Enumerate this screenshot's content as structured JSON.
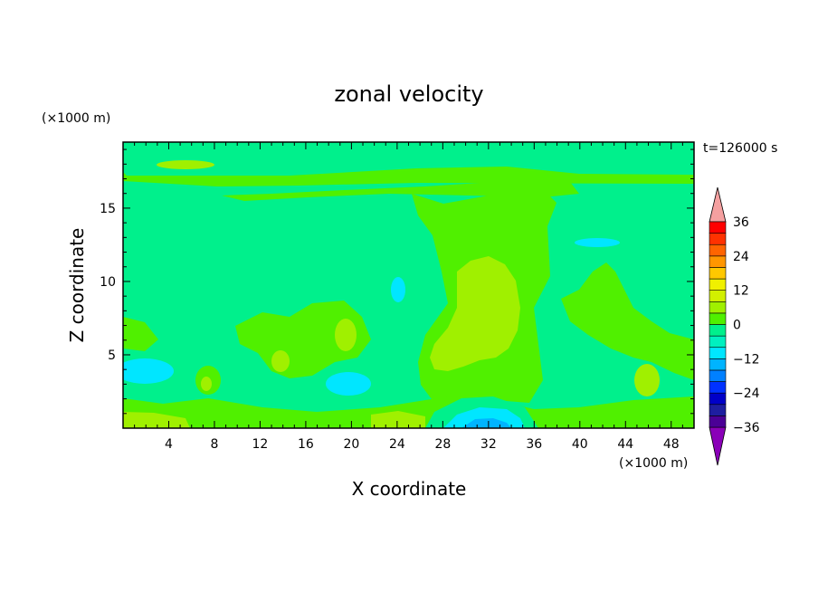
{
  "chart_data": {
    "type": "heatmap",
    "title": "zonal velocity",
    "xlabel": "X coordinate",
    "ylabel": "Z coordinate",
    "x_unit": "(×1000 m)",
    "y_unit": "(×1000 m)",
    "time_label": "t=126000 s",
    "xlim": [
      0,
      50
    ],
    "ylim": [
      0,
      19.5
    ],
    "x_ticks": [
      "4",
      "8",
      "12",
      "16",
      "20",
      "24",
      "28",
      "32",
      "36",
      "40",
      "44",
      "48"
    ],
    "y_ticks": [
      "5",
      "10",
      "15"
    ],
    "colorbar": {
      "levels": [
        -40,
        -36,
        -32,
        -28,
        -24,
        -20,
        -16,
        -12,
        -8,
        -4,
        0,
        4,
        8,
        12,
        16,
        20,
        24,
        28,
        32,
        36,
        40
      ],
      "tick_labels": [
        "36",
        "24",
        "12",
        "0",
        "−12",
        "−24",
        "−36"
      ],
      "colors": [
        "#8a00b8",
        "#4b0096",
        "#1e1ea0",
        "#0000c8",
        "#0032ff",
        "#0080ff",
        "#00b4ff",
        "#00e6ff",
        "#00f0c0",
        "#00f08c",
        "#50f000",
        "#a0f000",
        "#d2f000",
        "#f0f000",
        "#ffc800",
        "#ff9600",
        "#ff6400",
        "#ff3200",
        "#ff0000",
        "#f5a0a0"
      ]
    },
    "background_value": "-4 to 0 (cyan-green)",
    "regions": [
      {
        "name": "central positive column",
        "x_range": [
          25,
          38
        ],
        "z_range": [
          2,
          17.5
        ],
        "value_range": [
          0,
          4
        ]
      },
      {
        "name": "central maximum",
        "x_range": [
          28,
          35
        ],
        "z_range": [
          4,
          12
        ],
        "value_range": [
          4,
          8
        ]
      },
      {
        "name": "surface negative pocket",
        "x_range": [
          29,
          34
        ],
        "z_range": [
          0,
          1.5
        ],
        "value_range": [
          -12,
          -8
        ]
      },
      {
        "name": "surface positive patch",
        "x_range": [
          0,
          4
        ],
        "z_range": [
          0,
          1.5
        ],
        "value_range": [
          4,
          8
        ]
      }
    ]
  }
}
